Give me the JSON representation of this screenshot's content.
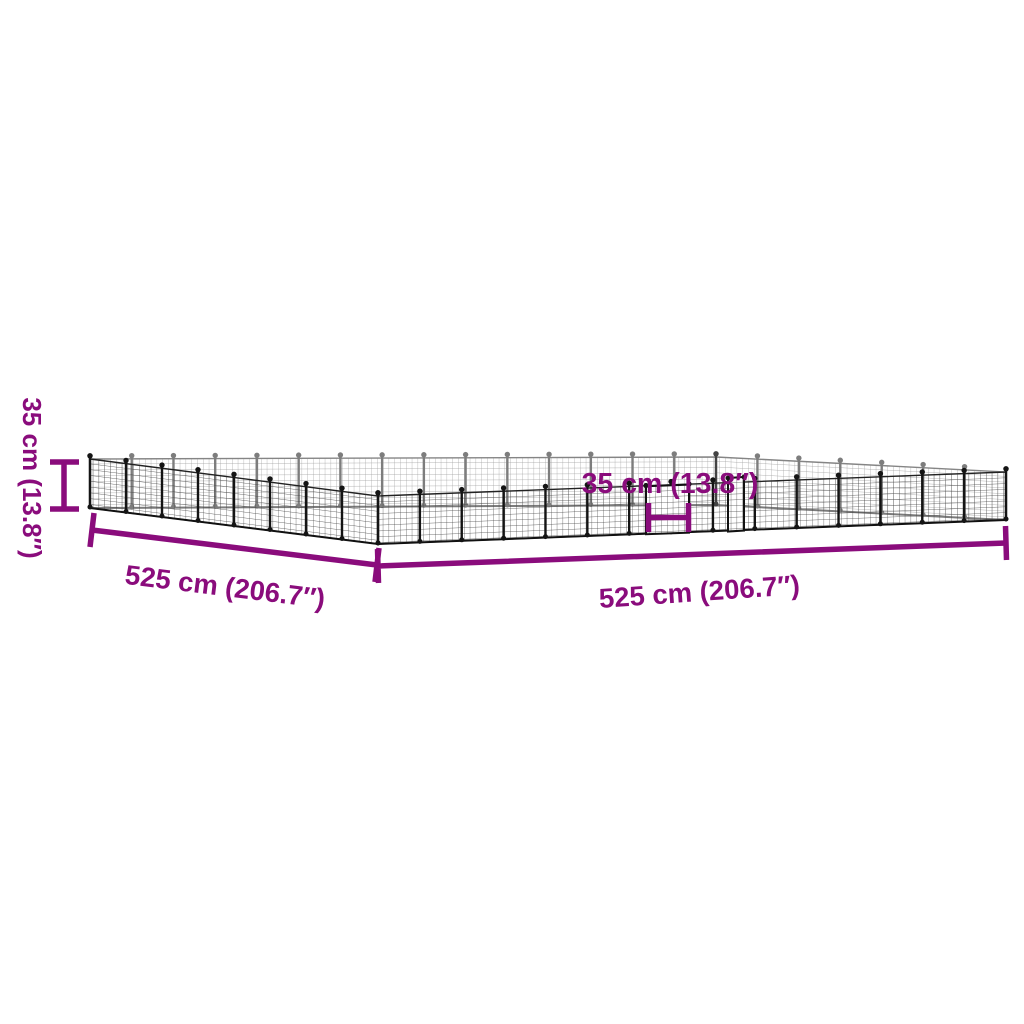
{
  "page": {
    "background_color": "#ffffff"
  },
  "diagram": {
    "kind": "product-dimension-diagram",
    "accent_color": "#8A0C7C",
    "mesh_color": "#1a1a1a",
    "labels": {
      "height": "35 cm (13.8″)",
      "door_width": "35 cm (13.8″)",
      "side_left": "525 cm (206.7″)",
      "side_front": "525 cm (206.7″)"
    }
  }
}
